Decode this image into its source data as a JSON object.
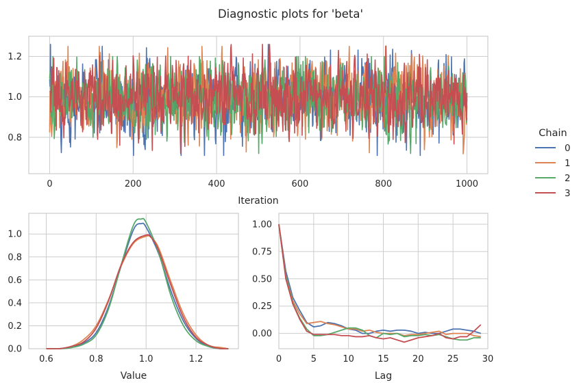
{
  "title": "Diagnostic plots for 'beta'",
  "colors": {
    "chain_0": "#4c72b0",
    "chain_1": "#dd8452",
    "chain_2": "#55a868",
    "chain_3": "#c44e52",
    "grid": "#cccccc",
    "frame": "#cccccc"
  },
  "legend": {
    "title": "Chain",
    "placement": "right",
    "items": [
      "0",
      "1",
      "2",
      "3"
    ]
  },
  "chart_data": [
    {
      "type": "line",
      "name": "trace",
      "xlabel": "Iteration",
      "ylabel": "",
      "xlim": [
        -50,
        1050
      ],
      "ylim": [
        0.62,
        1.3
      ],
      "xticks": [
        0,
        200,
        400,
        600,
        800,
        1000
      ],
      "yticks": [
        0.8,
        1.0,
        1.2
      ],
      "xtick_labels": [
        "0",
        "200",
        "400",
        "600",
        "800",
        "1000"
      ],
      "ytick_labels": [
        "0.8",
        "1.0",
        "1.2"
      ],
      "grid": true,
      "n_iterations": 1001,
      "series": [
        {
          "name": "0",
          "mean": 0.99,
          "sd": 0.095,
          "min": 0.71,
          "max": 1.26
        },
        {
          "name": "1",
          "mean": 1.0,
          "sd": 0.098,
          "min": 0.65,
          "max": 1.25
        },
        {
          "name": "2",
          "mean": 0.99,
          "sd": 0.09,
          "min": 0.72,
          "max": 1.2
        },
        {
          "name": "3",
          "mean": 1.0,
          "sd": 0.095,
          "min": 0.72,
          "max": 1.26
        }
      ]
    },
    {
      "type": "line",
      "name": "density",
      "xlabel": "Value",
      "ylabel": "",
      "xlim": [
        0.53,
        1.37
      ],
      "ylim": [
        0,
        1.18
      ],
      "xticks": [
        0.6,
        0.8,
        1.0,
        1.2
      ],
      "yticks": [
        0.0,
        0.2,
        0.4,
        0.6,
        0.8,
        1.0
      ],
      "xtick_labels": [
        "0.6",
        "0.8",
        "1.0",
        "1.2"
      ],
      "ytick_labels": [
        "0.0",
        "0.2",
        "0.4",
        "0.6",
        "0.8",
        "1.0"
      ],
      "grid": true,
      "series": [
        {
          "name": "0",
          "x": [
            0.6,
            0.65,
            0.7,
            0.75,
            0.8,
            0.85,
            0.9,
            0.95,
            0.98,
            1.0,
            1.05,
            1.1,
            1.15,
            1.2,
            1.25,
            1.3,
            1.33
          ],
          "y": [
            0.0,
            0.0,
            0.01,
            0.05,
            0.14,
            0.37,
            0.72,
            1.04,
            1.09,
            1.06,
            0.83,
            0.5,
            0.24,
            0.09,
            0.02,
            0.0,
            0.0
          ]
        },
        {
          "name": "1",
          "x": [
            0.6,
            0.65,
            0.7,
            0.75,
            0.8,
            0.85,
            0.9,
            0.95,
            1.0,
            1.02,
            1.05,
            1.1,
            1.15,
            1.2,
            1.25,
            1.3,
            1.33
          ],
          "y": [
            0.0,
            0.0,
            0.02,
            0.08,
            0.2,
            0.43,
            0.72,
            0.92,
            0.98,
            0.97,
            0.88,
            0.58,
            0.3,
            0.12,
            0.03,
            0.01,
            0.0
          ]
        },
        {
          "name": "2",
          "x": [
            0.6,
            0.65,
            0.7,
            0.75,
            0.8,
            0.85,
            0.9,
            0.95,
            0.98,
            1.0,
            1.05,
            1.1,
            1.15,
            1.2,
            1.25,
            1.3,
            1.33
          ],
          "y": [
            0.0,
            0.0,
            0.01,
            0.04,
            0.12,
            0.35,
            0.73,
            1.08,
            1.13,
            1.1,
            0.84,
            0.46,
            0.2,
            0.07,
            0.02,
            0.0,
            0.0
          ]
        },
        {
          "name": "3",
          "x": [
            0.6,
            0.65,
            0.7,
            0.75,
            0.8,
            0.85,
            0.9,
            0.95,
            1.0,
            1.02,
            1.05,
            1.1,
            1.15,
            1.2,
            1.25,
            1.3,
            1.33
          ],
          "y": [
            0.0,
            0.0,
            0.02,
            0.06,
            0.18,
            0.42,
            0.73,
            0.93,
            0.99,
            0.97,
            0.86,
            0.55,
            0.27,
            0.1,
            0.03,
            0.0,
            0.0
          ]
        }
      ]
    },
    {
      "type": "line",
      "name": "autocorrelation",
      "xlabel": "Lag",
      "ylabel": "",
      "xlim": [
        0,
        30
      ],
      "ylim": [
        -0.14,
        1.1
      ],
      "xticks": [
        0,
        5,
        10,
        15,
        20,
        25,
        30
      ],
      "yticks": [
        0.0,
        0.25,
        0.5,
        0.75,
        1.0
      ],
      "xtick_labels": [
        "0",
        "5",
        "10",
        "15",
        "20",
        "25",
        "30"
      ],
      "ytick_labels": [
        "0.00",
        "0.25",
        "0.50",
        "0.75",
        "1.00"
      ],
      "grid": true,
      "x": [
        0,
        1,
        2,
        3,
        4,
        5,
        6,
        7,
        8,
        9,
        10,
        11,
        12,
        13,
        14,
        15,
        16,
        17,
        18,
        19,
        20,
        21,
        22,
        23,
        24,
        25,
        26,
        27,
        28,
        29
      ],
      "series": [
        {
          "name": "0",
          "values": [
            1.0,
            0.57,
            0.33,
            0.21,
            0.1,
            0.06,
            0.07,
            0.1,
            0.09,
            0.07,
            0.04,
            0.03,
            0.0,
            0.0,
            0.02,
            0.03,
            0.02,
            0.03,
            0.03,
            0.02,
            0.0,
            0.01,
            0.0,
            0.0,
            0.02,
            0.04,
            0.04,
            0.03,
            0.02,
            0.0
          ]
        },
        {
          "name": "1",
          "values": [
            1.0,
            0.53,
            0.3,
            0.18,
            0.09,
            0.1,
            0.11,
            0.09,
            0.08,
            0.06,
            0.04,
            0.04,
            0.02,
            0.03,
            0.01,
            0.0,
            0.0,
            0.0,
            -0.02,
            -0.01,
            -0.01,
            0.0,
            0.01,
            0.02,
            -0.01,
            0.0,
            0.0,
            0.0,
            -0.02,
            -0.03
          ]
        },
        {
          "name": "2",
          "values": [
            1.0,
            0.52,
            0.28,
            0.14,
            0.04,
            -0.02,
            -0.02,
            -0.01,
            0.01,
            0.03,
            0.05,
            0.05,
            0.03,
            -0.02,
            -0.04,
            0.0,
            -0.01,
            0.0,
            -0.03,
            -0.02,
            -0.02,
            -0.01,
            -0.02,
            -0.01,
            -0.03,
            -0.05,
            -0.06,
            -0.06,
            -0.04,
            -0.04
          ]
        },
        {
          "name": "3",
          "values": [
            1.0,
            0.5,
            0.27,
            0.13,
            0.02,
            -0.01,
            -0.01,
            -0.01,
            -0.01,
            -0.02,
            -0.02,
            -0.03,
            -0.03,
            -0.02,
            -0.04,
            -0.05,
            -0.04,
            -0.06,
            -0.08,
            -0.06,
            -0.04,
            -0.03,
            -0.02,
            0.0,
            -0.04,
            -0.05,
            -0.03,
            -0.03,
            0.02,
            0.08
          ]
        }
      ]
    }
  ]
}
